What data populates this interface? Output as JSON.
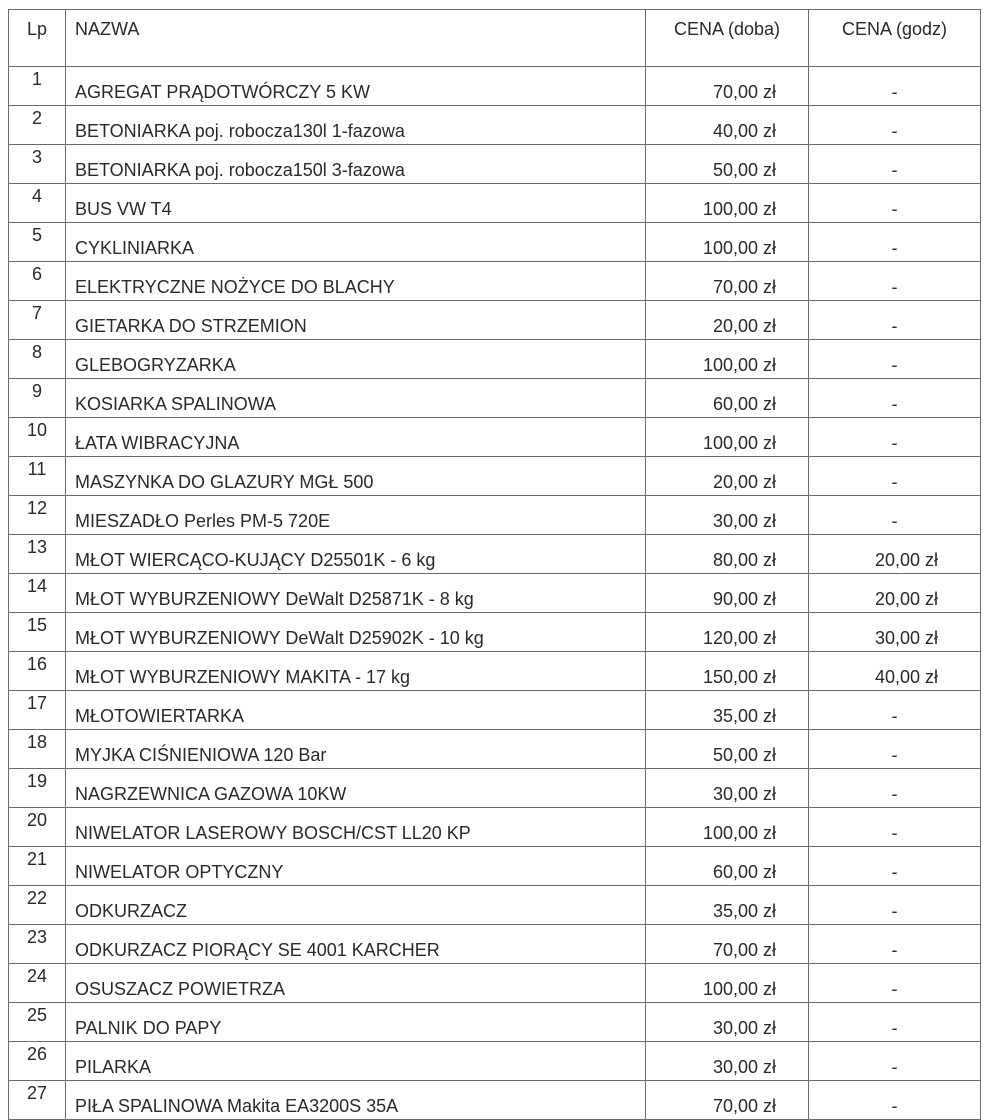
{
  "headers": {
    "lp": "Lp",
    "name": "NAZWA",
    "price_day": "CENA (doba)",
    "price_hour": "CENA (godz)"
  },
  "rows": [
    {
      "lp": "1",
      "name": "AGREGAT PRĄDOTWÓRCZY 5 KW",
      "day": "70,00 zł",
      "hour": "-"
    },
    {
      "lp": "2",
      "name": "BETONIARKA poj. robocza130l 1-fazowa",
      "day": "40,00 zł",
      "hour": "-"
    },
    {
      "lp": "3",
      "name": "BETONIARKA poj. robocza150l 3-fazowa",
      "day": "50,00 zł",
      "hour": "-"
    },
    {
      "lp": "4",
      "name": "BUS VW T4",
      "day": "100,00 zł",
      "hour": "-"
    },
    {
      "lp": "5",
      "name": "CYKLINIARKA",
      "day": "100,00 zł",
      "hour": "-"
    },
    {
      "lp": "6",
      "name": "ELEKTRYCZNE NOŻYCE DO BLACHY",
      "day": "70,00 zł",
      "hour": "-"
    },
    {
      "lp": "7",
      "name": "GIETARKA DO STRZEMION",
      "day": "20,00 zł",
      "hour": "-"
    },
    {
      "lp": "8",
      "name": "GLEBOGRYZARKA",
      "day": "100,00 zł",
      "hour": "-"
    },
    {
      "lp": "9",
      "name": "KOSIARKA SPALINOWA",
      "day": "60,00 zł",
      "hour": "-"
    },
    {
      "lp": "10",
      "name": "ŁATA WIBRACYJNA",
      "day": "100,00 zł",
      "hour": "-"
    },
    {
      "lp": "11",
      "name": "MASZYNKA DO GLAZURY MGŁ 500",
      "day": "20,00 zł",
      "hour": "-"
    },
    {
      "lp": "12",
      "name": "MIESZADŁO Perles PM-5 720E",
      "day": "30,00 zł",
      "hour": "-"
    },
    {
      "lp": "13",
      "name": "MŁOT WIERCĄCO-KUJĄCY D25501K - 6 kg",
      "day": "80,00 zł",
      "hour": "20,00 zł"
    },
    {
      "lp": "14",
      "name": "MŁOT WYBURZENIOWY DeWalt D25871K - 8 kg",
      "day": "90,00 zł",
      "hour": "20,00 zł"
    },
    {
      "lp": "15",
      "name": "MŁOT WYBURZENIOWY DeWalt D25902K - 10 kg",
      "day": "120,00 zł",
      "hour": "30,00 zł"
    },
    {
      "lp": "16",
      "name": "MŁOT WYBURZENIOWY MAKITA - 17 kg",
      "day": "150,00 zł",
      "hour": "40,00 zł"
    },
    {
      "lp": "17",
      "name": "MŁOTOWIERTARKA",
      "day": "35,00 zł",
      "hour": "-"
    },
    {
      "lp": "18",
      "name": "MYJKA CIŚNIENIOWA 120 Bar",
      "day": "50,00 zł",
      "hour": "-"
    },
    {
      "lp": "19",
      "name": "NAGRZEWNICA GAZOWA 10KW",
      "day": "30,00 zł",
      "hour": "-"
    },
    {
      "lp": "20",
      "name": "NIWELATOR LASEROWY BOSCH/CST LL20 KP",
      "day": "100,00 zł",
      "hour": "-"
    },
    {
      "lp": "21",
      "name": "NIWELATOR OPTYCZNY",
      "day": "60,00 zł",
      "hour": "-"
    },
    {
      "lp": "22",
      "name": "ODKURZACZ",
      "day": "35,00 zł",
      "hour": "-"
    },
    {
      "lp": "23",
      "name": "ODKURZACZ PIORĄCY SE 4001 KARCHER",
      "day": "70,00 zł",
      "hour": "-"
    },
    {
      "lp": "24",
      "name": "OSUSZACZ POWIETRZA",
      "day": "100,00 zł",
      "hour": "-"
    },
    {
      "lp": "25",
      "name": "PALNIK DO PAPY",
      "day": "30,00 zł",
      "hour": "-"
    },
    {
      "lp": "26",
      "name": "PILARKA",
      "day": "30,00 zł",
      "hour": "-"
    },
    {
      "lp": "27",
      "name": "PIŁA SPALINOWA Makita EA3200S 35A",
      "day": "70,00 zł",
      "hour": "-"
    }
  ]
}
